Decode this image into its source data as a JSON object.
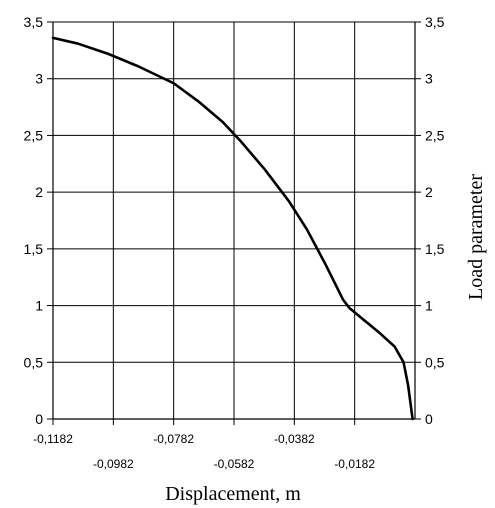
{
  "chart_data": {
    "type": "line",
    "xlabel": "Displacement, m",
    "ylabel": "Load parameter",
    "xlim": [
      -0.1182,
      0.0018
    ],
    "ylim": [
      0,
      3.5
    ],
    "x_ticks": [
      {
        "value": -0.1182,
        "label": "-0,1182"
      },
      {
        "value": -0.0982,
        "label": "-0,0982"
      },
      {
        "value": -0.0782,
        "label": "-0,0782"
      },
      {
        "value": -0.0582,
        "label": "-0,0582"
      },
      {
        "value": -0.0382,
        "label": "-0,0382"
      },
      {
        "value": -0.0182,
        "label": "-0,0182"
      }
    ],
    "y_ticks": [
      {
        "value": 0,
        "label": "0"
      },
      {
        "value": 0.5,
        "label": "0,5"
      },
      {
        "value": 1,
        "label": "1"
      },
      {
        "value": 1.5,
        "label": "1,5"
      },
      {
        "value": 2,
        "label": "2"
      },
      {
        "value": 2.5,
        "label": "2,5"
      },
      {
        "value": 3,
        "label": "3"
      },
      {
        "value": 3.5,
        "label": "3,5"
      }
    ],
    "grid": true,
    "series": [
      {
        "points": [
          {
            "x": -0.1182,
            "y": 3.36
          },
          {
            "x": -0.11,
            "y": 3.31
          },
          {
            "x": -0.1,
            "y": 3.22
          },
          {
            "x": -0.09,
            "y": 3.11
          },
          {
            "x": -0.0782,
            "y": 2.96
          },
          {
            "x": -0.07,
            "y": 2.8
          },
          {
            "x": -0.062,
            "y": 2.62
          },
          {
            "x": -0.056,
            "y": 2.45
          },
          {
            "x": -0.048,
            "y": 2.2
          },
          {
            "x": -0.04,
            "y": 1.92
          },
          {
            "x": -0.034,
            "y": 1.67
          },
          {
            "x": -0.028,
            "y": 1.37
          },
          {
            "x": -0.022,
            "y": 1.05
          },
          {
            "x": -0.02,
            "y": 0.98
          },
          {
            "x": -0.015,
            "y": 0.87
          },
          {
            "x": -0.01,
            "y": 0.76
          },
          {
            "x": -0.005,
            "y": 0.64
          },
          {
            "x": -0.002,
            "y": 0.5
          },
          {
            "x": -0.0005,
            "y": 0.3
          },
          {
            "x": 0.0005,
            "y": 0.1
          },
          {
            "x": 0.001,
            "y": 0.0
          }
        ],
        "color": "#000000"
      }
    ]
  }
}
